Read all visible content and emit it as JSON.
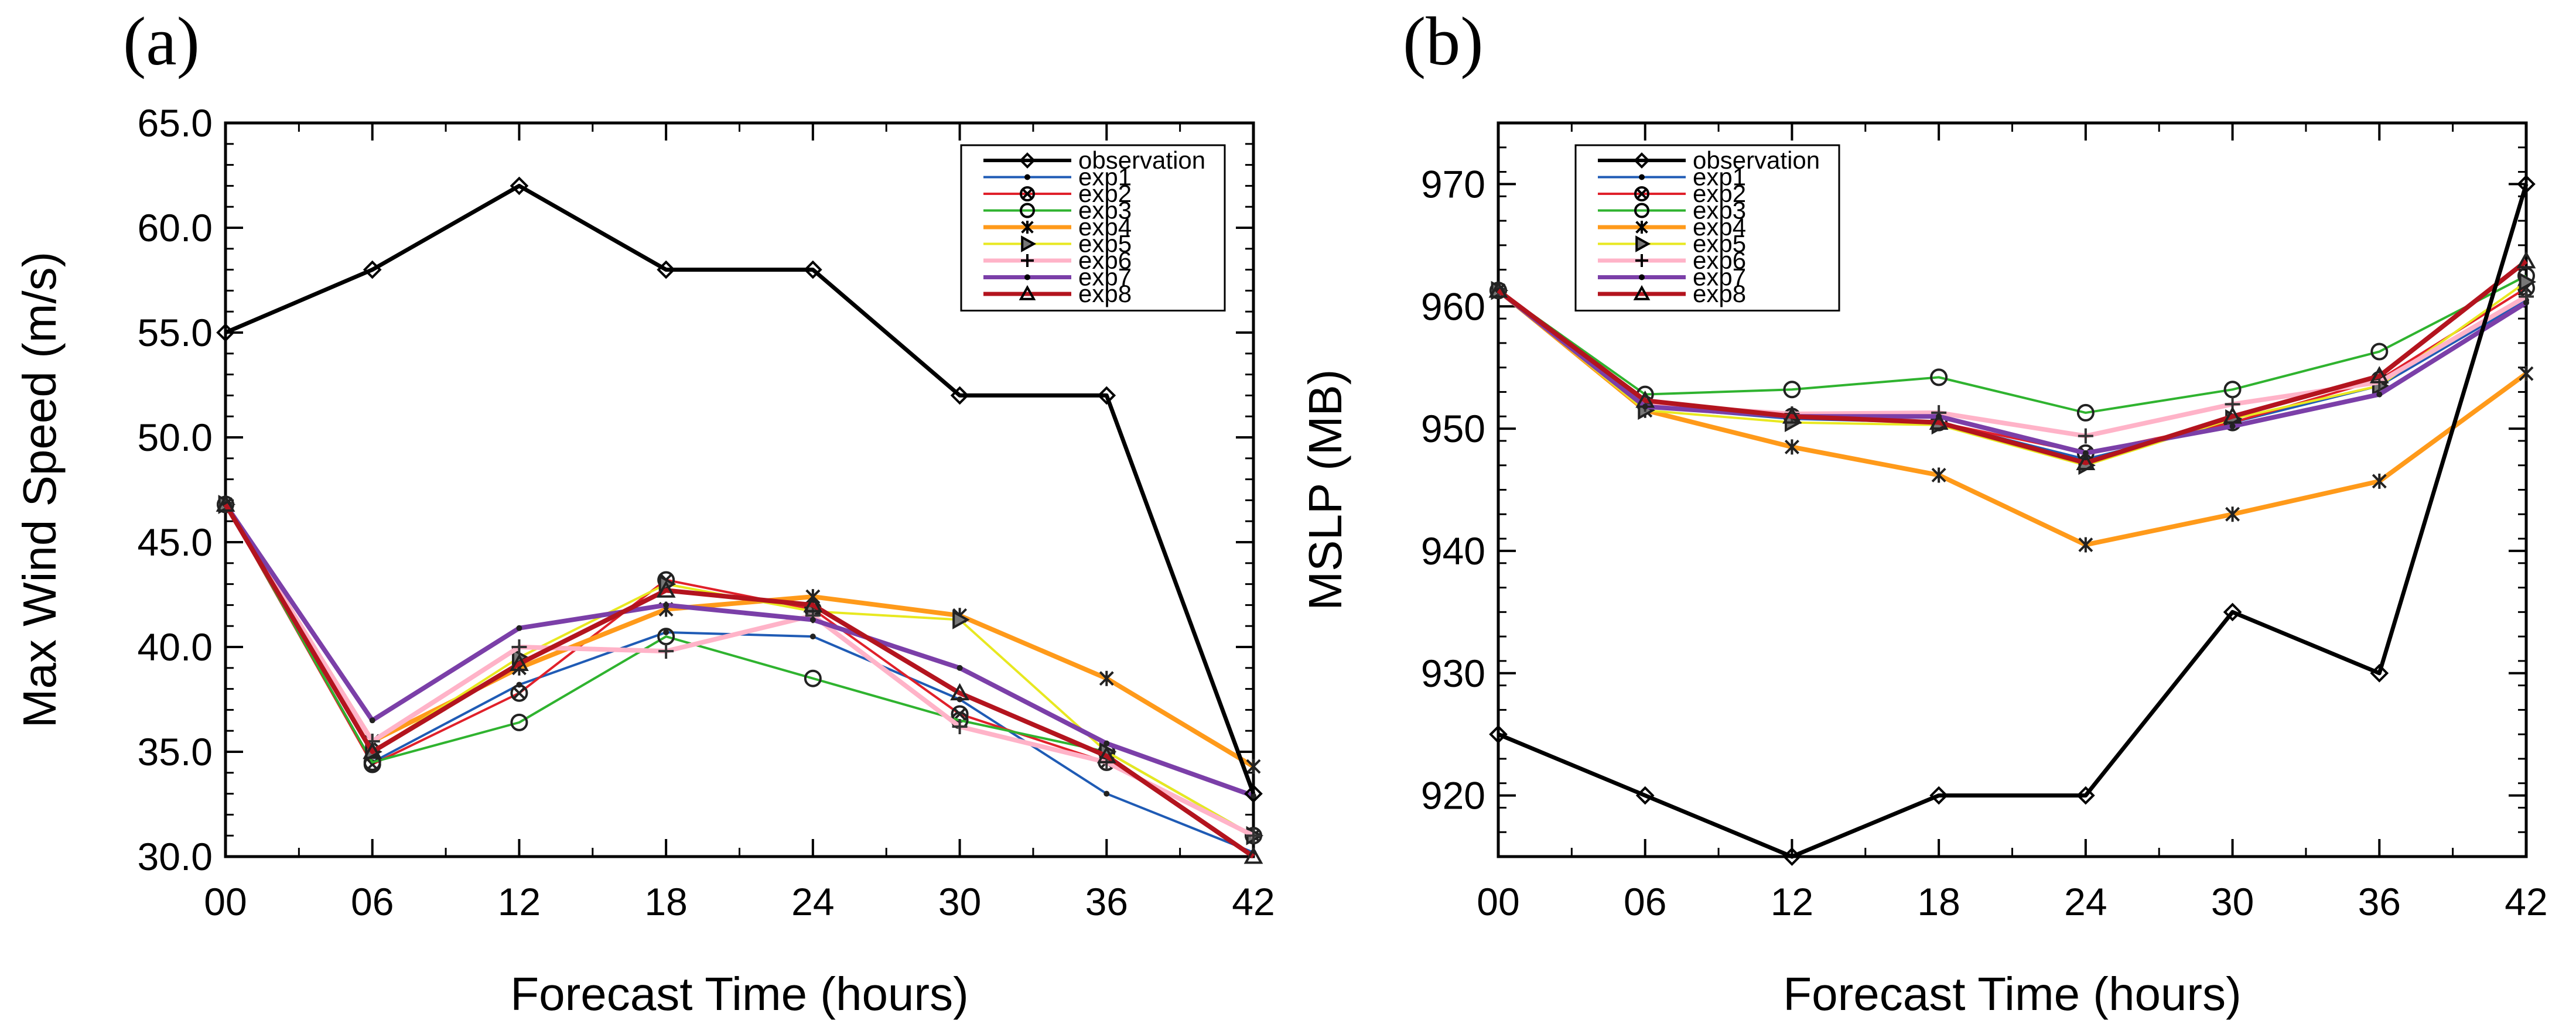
{
  "chart_data": [
    {
      "type": "line",
      "panel": "(a)",
      "xlabel": "Forecast Time (hours)",
      "ylabel": "Max Wind Speed (m/s)",
      "ylim": [
        30,
        65
      ],
      "ytick_labels": [
        "30.0",
        "35.0",
        "40.0",
        "45.0",
        "50.0",
        "55.0",
        "60.0",
        "65.0"
      ],
      "yticks": [
        30,
        35,
        40,
        45,
        50,
        55,
        60,
        65
      ],
      "x": [
        0,
        6,
        12,
        18,
        24,
        30,
        36,
        42
      ],
      "categories": [
        "00",
        "06",
        "12",
        "18",
        "24",
        "30",
        "36",
        "42"
      ],
      "legend_position": "top-right",
      "series": [
        {
          "name": "observation",
          "color": "#000000",
          "marker": "diamond",
          "values": [
            55.0,
            58.0,
            62.0,
            58.0,
            58.0,
            52.0,
            52.0,
            33.0
          ]
        },
        {
          "name": "exp1",
          "color": "#1f5bb5",
          "marker": "dot",
          "values": [
            46.8,
            34.5,
            38.2,
            40.7,
            40.5,
            37.5,
            33.0,
            30.2
          ]
        },
        {
          "name": "exp2",
          "color": "#e0202a",
          "marker": "circle-x",
          "values": [
            46.8,
            34.4,
            37.8,
            43.2,
            41.8,
            36.8,
            34.5,
            31.0
          ]
        },
        {
          "name": "exp3",
          "color": "#2fb32f",
          "marker": "circle",
          "values": [
            46.8,
            34.5,
            36.4,
            40.5,
            38.5,
            36.5,
            35.0,
            31.0
          ]
        },
        {
          "name": "exp4",
          "color": "#ff9a1a",
          "marker": "asterisk",
          "values": [
            46.8,
            35.5,
            39.0,
            41.8,
            42.4,
            41.5,
            38.5,
            34.3
          ]
        },
        {
          "name": "exp5",
          "color": "#e8e820",
          "marker": "triangle-right",
          "values": [
            46.8,
            35.0,
            39.5,
            43.0,
            41.7,
            41.3,
            35.0,
            31.0
          ]
        },
        {
          "name": "exp6",
          "color": "#ffb3c8",
          "marker": "plus",
          "values": [
            46.8,
            35.5,
            40.0,
            39.8,
            41.5,
            36.2,
            34.5,
            31.0
          ]
        },
        {
          "name": "exp7",
          "color": "#7b3fa8",
          "marker": "dot",
          "values": [
            46.8,
            36.5,
            40.9,
            42.0,
            41.3,
            39.0,
            35.4,
            32.9
          ]
        },
        {
          "name": "exp8",
          "color": "#b3141e",
          "marker": "triangle",
          "values": [
            46.8,
            35.0,
            39.2,
            42.7,
            42.0,
            37.8,
            34.8,
            30.0
          ]
        }
      ]
    },
    {
      "type": "line",
      "panel": "(b)",
      "xlabel": "Forecast Time (hours)",
      "ylabel": "MSLP (MB)",
      "ylim": [
        915,
        975
      ],
      "ytick_labels": [
        "920",
        "930",
        "940",
        "950",
        "960",
        "970"
      ],
      "yticks": [
        920,
        930,
        940,
        950,
        960,
        970
      ],
      "x": [
        0,
        6,
        12,
        18,
        24,
        30,
        36,
        42
      ],
      "categories": [
        "00",
        "06",
        "12",
        "18",
        "24",
        "30",
        "36",
        "42"
      ],
      "legend_position": "top-left",
      "series": [
        {
          "name": "observation",
          "color": "#000000",
          "marker": "diamond",
          "values": [
            925,
            920,
            915,
            920,
            920,
            935,
            930,
            970
          ]
        },
        {
          "name": "exp1",
          "color": "#1f5bb5",
          "marker": "dot",
          "values": [
            961.3,
            951.8,
            950.8,
            950.5,
            947.5,
            950.5,
            953.5,
            960.5
          ]
        },
        {
          "name": "exp2",
          "color": "#e0202a",
          "marker": "circle-x",
          "values": [
            961.3,
            952.0,
            951.0,
            950.5,
            948.0,
            950.5,
            954.0,
            961.5
          ]
        },
        {
          "name": "exp3",
          "color": "#2fb32f",
          "marker": "circle",
          "values": [
            961.3,
            952.8,
            953.2,
            954.2,
            951.3,
            953.2,
            956.3,
            962.5
          ]
        },
        {
          "name": "exp4",
          "color": "#ff9a1a",
          "marker": "asterisk",
          "values": [
            961.3,
            951.5,
            948.5,
            946.2,
            940.5,
            943.0,
            945.7,
            954.5
          ]
        },
        {
          "name": "exp5",
          "color": "#e8e820",
          "marker": "triangle-right",
          "values": [
            961.3,
            951.5,
            950.5,
            950.3,
            947.0,
            950.8,
            953.5,
            962.0
          ]
        },
        {
          "name": "exp6",
          "color": "#ffb3c8",
          "marker": "plus",
          "values": [
            961.3,
            952.0,
            951.2,
            951.3,
            949.4,
            952.0,
            953.8,
            960.8
          ]
        },
        {
          "name": "exp7",
          "color": "#7b3fa8",
          "marker": "dot",
          "values": [
            961.3,
            951.8,
            951.0,
            951.0,
            948.0,
            950.2,
            952.8,
            960.3
          ]
        },
        {
          "name": "exp8",
          "color": "#b3141e",
          "marker": "triangle",
          "values": [
            961.3,
            952.3,
            951.0,
            950.5,
            947.2,
            951.0,
            954.3,
            963.7
          ]
        }
      ]
    }
  ]
}
